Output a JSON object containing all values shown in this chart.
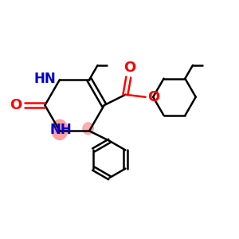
{
  "background_color": "#ffffff",
  "bond_color_black": "#000000",
  "bond_color_blue": "#0000cd",
  "bond_color_red": "#ff0000",
  "highlight_pink": "#ff8080",
  "figsize": [
    3.0,
    3.0
  ],
  "dpi": 100,
  "xlim": [
    0,
    10
  ],
  "ylim": [
    0,
    10
  ]
}
